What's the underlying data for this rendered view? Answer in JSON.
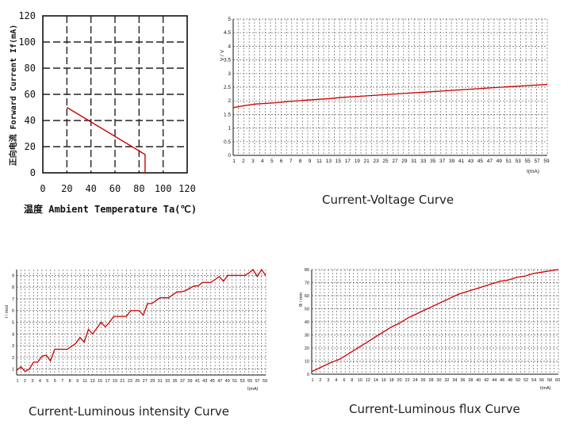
{
  "chart_data": [
    {
      "type": "line",
      "xlabel": "温度 Ambient Temperature Ta(℃)",
      "ylabel": "正向电流 Forward Current If(mA)",
      "xlim": [
        0,
        120
      ],
      "ylim": [
        0,
        120
      ],
      "xticks": [
        "0",
        "20",
        "40",
        "60",
        "80",
        "100",
        "120"
      ],
      "yticks": [
        "0",
        "20",
        "40",
        "60",
        "80",
        "100",
        "120"
      ],
      "grid": true,
      "series": [
        {
          "x": [
            20,
            85,
            85
          ],
          "y": [
            50,
            14,
            0
          ]
        }
      ],
      "color": "#cc0000"
    },
    {
      "type": "line",
      "caption": "Current-Voltage Curve",
      "xlabel": "I(mA)",
      "ylabel": "V / V",
      "xlim": [
        1,
        60
      ],
      "ylim": [
        0,
        5
      ],
      "yticks": [
        "0",
        "0.5",
        "1",
        "1.5",
        "2",
        "2.5",
        "3",
        "3.5",
        "4",
        "4.5",
        "5"
      ],
      "xticks": [
        "1",
        "2",
        "3",
        "4",
        "5",
        "6",
        "7",
        "8",
        "9",
        "11",
        "13",
        "15",
        "17",
        "19",
        "21",
        "23",
        "25",
        "27",
        "29",
        "31",
        "33",
        "35",
        "37",
        "39",
        "41",
        "43",
        "45",
        "47",
        "49",
        "51",
        "53",
        "55",
        "57",
        "59"
      ],
      "grid": true,
      "series": [
        {
          "x": [
            1,
            3,
            5,
            9,
            11,
            15,
            19,
            21,
            25,
            29,
            33,
            37,
            41,
            45,
            49,
            53,
            57,
            60
          ],
          "y": [
            1.75,
            1.82,
            1.88,
            1.93,
            1.97,
            2.03,
            2.08,
            2.12,
            2.17,
            2.22,
            2.27,
            2.32,
            2.37,
            2.42,
            2.47,
            2.52,
            2.57,
            2.6
          ]
        }
      ],
      "color": "#cc0000"
    },
    {
      "type": "line",
      "caption": "Current-Luminous intensity Curve",
      "xlabel": "I(mA)",
      "ylabel": "I / mcd",
      "xlim": [
        1,
        60
      ],
      "ylim": [
        0.5,
        9.5
      ],
      "yticks": [
        "1",
        "2",
        "3",
        "4",
        "5",
        "6",
        "7",
        "8",
        "9"
      ],
      "xticks": [
        "1",
        "2",
        "3",
        "4",
        "5",
        "6",
        "7",
        "8",
        "9",
        "11",
        "13",
        "15",
        "17",
        "19",
        "21",
        "23",
        "25",
        "27",
        "29",
        "31",
        "33",
        "35",
        "37",
        "39",
        "41",
        "43",
        "45",
        "47",
        "49",
        "51",
        "53",
        "55",
        "57",
        "59"
      ],
      "grid": true,
      "series": [
        {
          "x": [
            1,
            2,
            3,
            4,
            5,
            6,
            7,
            8,
            9,
            10,
            11,
            13,
            15,
            16,
            17,
            18,
            19,
            20,
            21,
            22,
            23,
            24,
            25,
            27,
            28,
            29,
            30,
            31,
            32,
            33,
            35,
            36,
            37,
            39,
            40,
            41,
            43,
            44,
            45,
            47,
            49,
            50,
            51,
            53,
            55,
            56,
            57,
            58,
            59,
            60
          ],
          "y": [
            0.9,
            1.2,
            0.8,
            1.0,
            1.6,
            1.6,
            2.1,
            2.2,
            1.7,
            2.7,
            2.7,
            2.7,
            3.2,
            3.7,
            3.3,
            4.4,
            4.0,
            4.5,
            5.0,
            4.6,
            5.0,
            5.5,
            5.5,
            5.5,
            6.0,
            6.0,
            6.0,
            5.6,
            6.6,
            6.6,
            7.1,
            7.1,
            7.1,
            7.6,
            7.6,
            7.7,
            8.1,
            8.1,
            8.4,
            8.4,
            8.9,
            8.5,
            9.0,
            9.0,
            9.0,
            9.2,
            9.5,
            8.9,
            9.5,
            9.0
          ]
        }
      ],
      "color": "#cc0000"
    },
    {
      "type": "line",
      "caption": "Current-Luminous flux Curve",
      "xlabel": "I(mA)",
      "ylabel": "Φ / mm",
      "xlim": [
        1,
        60
      ],
      "ylim": [
        0,
        80
      ],
      "yticks": [
        "0",
        "10",
        "20",
        "30",
        "40",
        "50",
        "60",
        "70",
        "80"
      ],
      "xticks": [
        "1",
        "2",
        "3",
        "4",
        "6",
        "8",
        "10",
        "12",
        "14",
        "16",
        "18",
        "20",
        "22",
        "24",
        "26",
        "28",
        "30",
        "32",
        "34",
        "36",
        "38",
        "40",
        "42",
        "44",
        "46",
        "48",
        "50",
        "52",
        "54",
        "56",
        "58",
        "60"
      ],
      "grid": true,
      "series": [
        {
          "x": [
            1,
            3,
            5,
            8,
            10,
            12,
            14,
            16,
            18,
            20,
            22,
            24,
            26,
            28,
            30,
            32,
            34,
            36,
            38,
            40,
            42,
            44,
            46,
            48,
            50,
            52,
            54,
            56,
            58,
            60
          ],
          "y": [
            2,
            5,
            8,
            12,
            16,
            20,
            24,
            28,
            32,
            36,
            39,
            43,
            46,
            49,
            52,
            55,
            58,
            61,
            63,
            65,
            67,
            69,
            71,
            72,
            74,
            75,
            77,
            78,
            79,
            80
          ]
        }
      ],
      "color": "#cc0000"
    }
  ]
}
